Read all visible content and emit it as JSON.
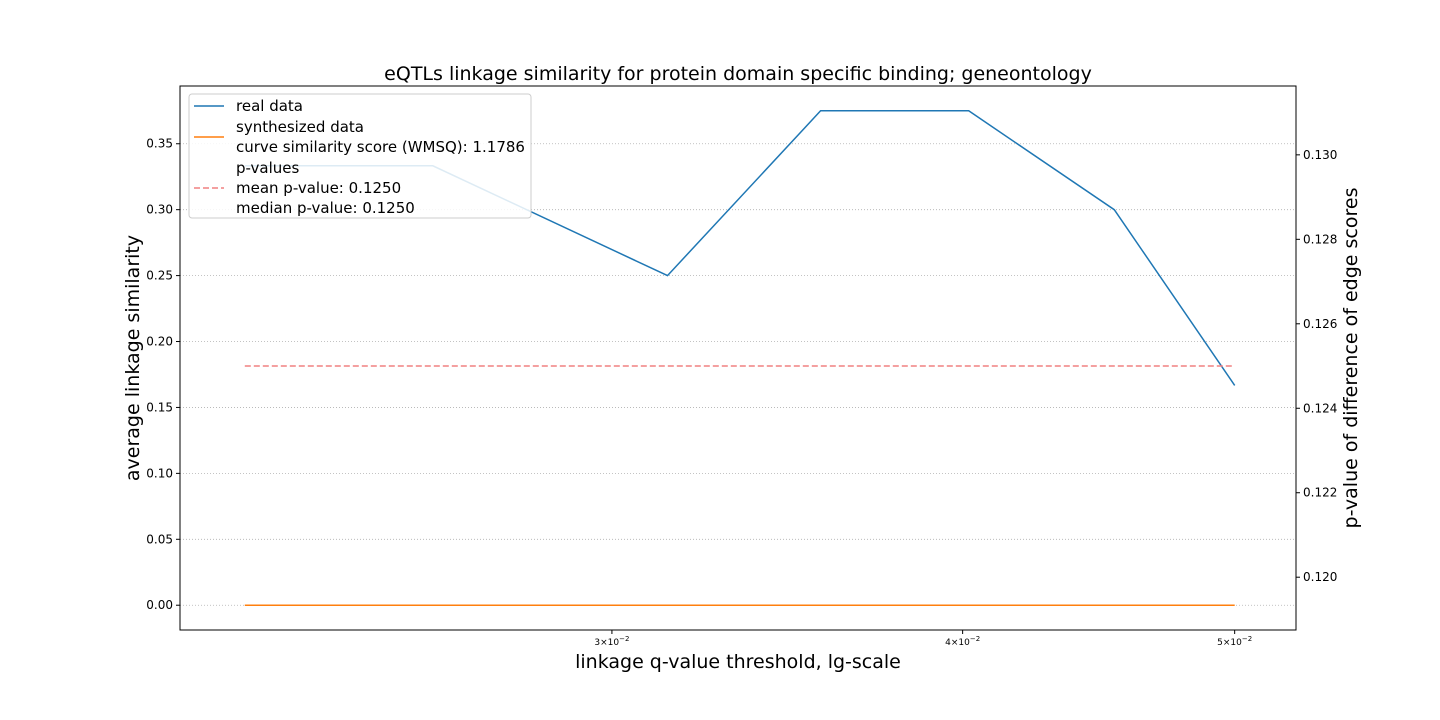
{
  "chart_data": {
    "type": "line",
    "title": "eQTLs linkage similarity for protein domain specific binding; geneontology",
    "xlabel": "linkage q-value threshold, lg-scale",
    "ylabel": "average linkage similarity",
    "y2label": "p-value of difference of edge scores",
    "xscale": "log",
    "xlim": [
      0.02105,
      0.05258
    ],
    "ylim": [
      -0.0188,
      0.3938
    ],
    "y2lim": [
      0.11875,
      0.13163
    ],
    "x_ticks": [
      {
        "value": 0.03,
        "label_base": "3×10",
        "label_exp": "−2"
      },
      {
        "value": 0.04,
        "label_base": "4×10",
        "label_exp": "−2"
      },
      {
        "value": 0.05,
        "label_base": "5×10",
        "label_exp": "−2"
      }
    ],
    "y_ticks": [
      "0.00",
      "0.05",
      "0.10",
      "0.15",
      "0.20",
      "0.25",
      "0.30",
      "0.35"
    ],
    "y_tick_values": [
      0,
      0.05,
      0.1,
      0.15,
      0.2,
      0.25,
      0.3,
      0.35
    ],
    "y2_ticks": [
      "0.120",
      "0.122",
      "0.124",
      "0.126",
      "0.128",
      "0.130"
    ],
    "y2_tick_values": [
      0.12,
      0.122,
      0.124,
      0.126,
      0.128,
      0.13
    ],
    "grid": "horizontal dotted",
    "legend_position": "top-left",
    "series": [
      {
        "name": "real data",
        "axis": "left",
        "color": "#1f77b4",
        "style": "solid",
        "x": [
          0.0222,
          0.0259,
          0.0314,
          0.0356,
          0.0402,
          0.0453,
          0.05
        ],
        "y": [
          0.3333,
          0.3333,
          0.25,
          0.375,
          0.375,
          0.3,
          0.1667
        ]
      },
      {
        "name": "synthesized data",
        "axis": "left",
        "color": "#ff7f0e",
        "style": "solid",
        "x": [
          0.0222,
          0.05
        ],
        "y": [
          0,
          0
        ]
      },
      {
        "name": "p-values",
        "axis": "right",
        "color": "#f08080",
        "style": "dashed",
        "x": [
          0.0222,
          0.05
        ],
        "y": [
          0.125,
          0.125
        ]
      }
    ],
    "legend": [
      {
        "series": 0,
        "lines": [
          "real data"
        ]
      },
      {
        "series": 1,
        "lines": [
          "synthesized data",
          "curve similarity score (WMSQ): 1.1786"
        ]
      },
      {
        "series": 2,
        "lines": [
          "p-values",
          "mean p-value: 0.1250",
          "median p-value: 0.1250"
        ]
      }
    ]
  }
}
